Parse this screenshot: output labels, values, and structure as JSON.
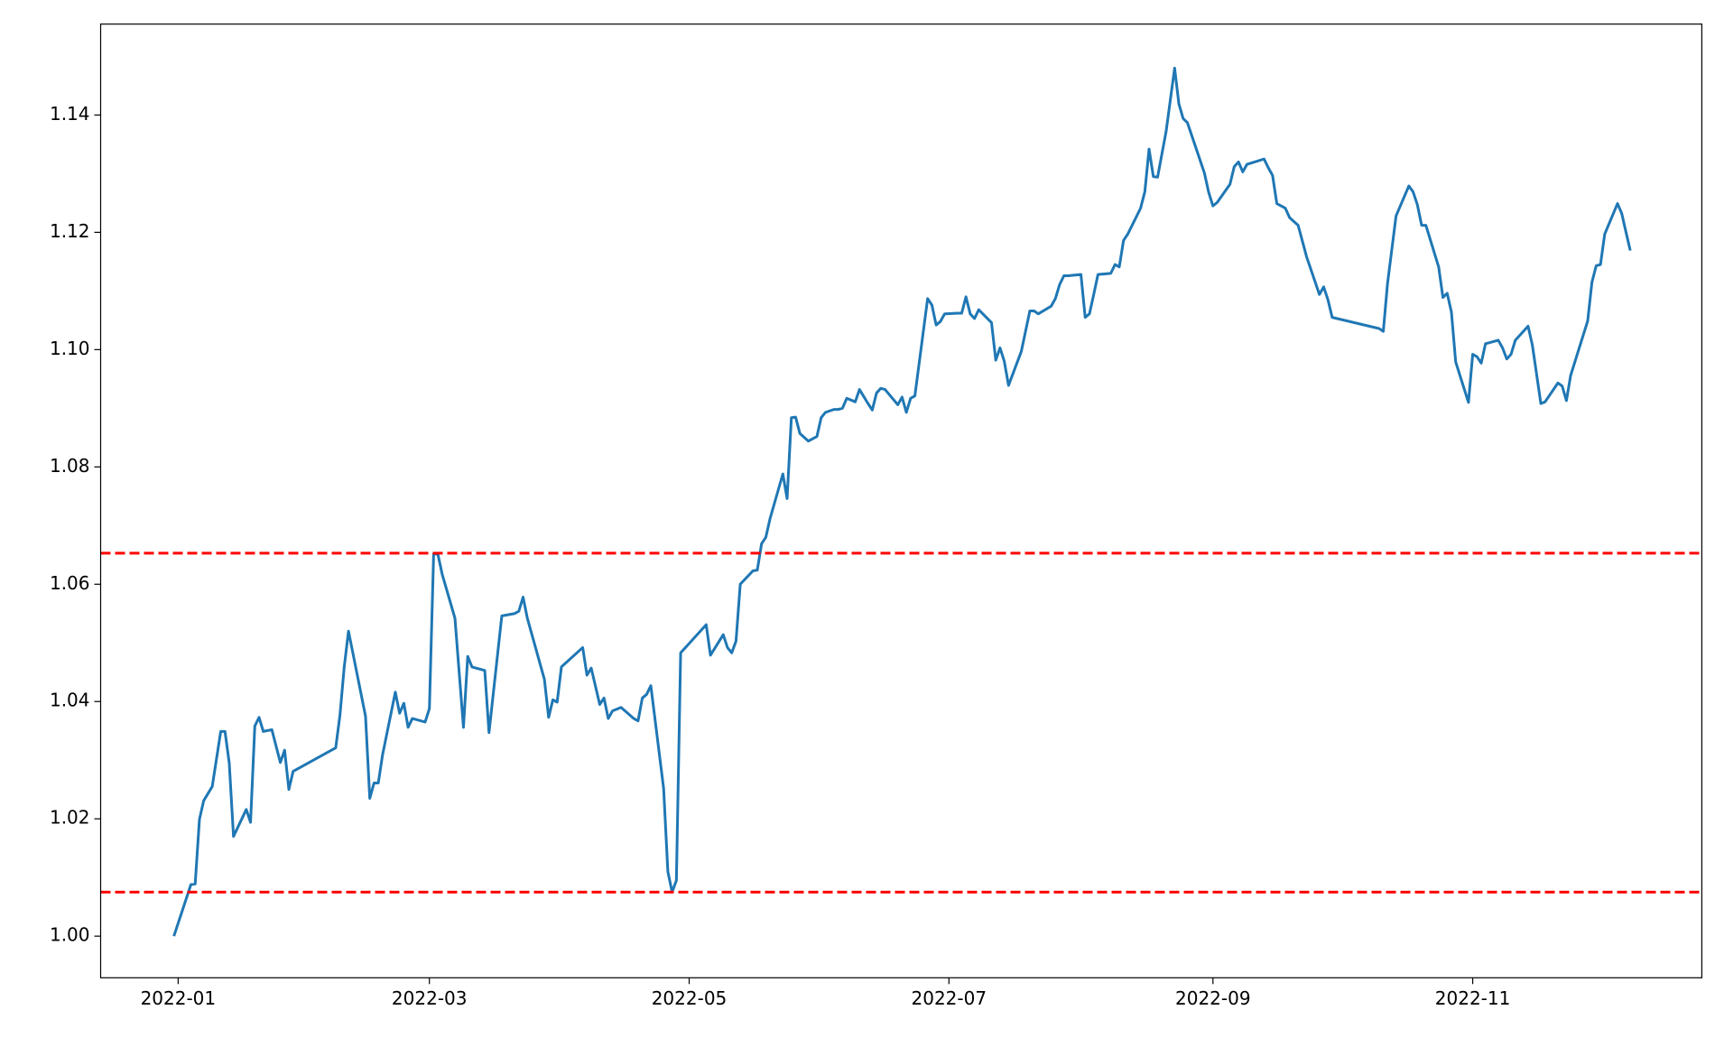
{
  "chart_data": {
    "type": "line",
    "x": [
      -1,
      3,
      4,
      5,
      6,
      8,
      10,
      11,
      12,
      13,
      16,
      17,
      18,
      19,
      20,
      22,
      24,
      25,
      26,
      27,
      37,
      38,
      39,
      40,
      44,
      45,
      46,
      47,
      48,
      51,
      52,
      53,
      54,
      55,
      58,
      59,
      60,
      61,
      62,
      65,
      67,
      68,
      69,
      72,
      73,
      76,
      79,
      80,
      81,
      82,
      86,
      87,
      88,
      89,
      90,
      95,
      96,
      97,
      99,
      100,
      101,
      102,
      104,
      107,
      108,
      109,
      110,
      111,
      114,
      115,
      116,
      117,
      118,
      124,
      125,
      128,
      129,
      130,
      131,
      132,
      135,
      136,
      137,
      138,
      139,
      142,
      143,
      144,
      145,
      146,
      148,
      150,
      151,
      152,
      154,
      155,
      156,
      157,
      159,
      160,
      162,
      163,
      164,
      165,
      166,
      169,
      170,
      171,
      172,
      173,
      176,
      177,
      178,
      179,
      180,
      183,
      184,
      185,
      186,
      187,
      188,
      191,
      192,
      193,
      194,
      195,
      198,
      200,
      201,
      202,
      205,
      206,
      207,
      208,
      209,
      212,
      213,
      214,
      215,
      216,
      219,
      220,
      221,
      222,
      223,
      226,
      227,
      228,
      229,
      230,
      232,
      234,
      235,
      236,
      237,
      241,
      242,
      243,
      244,
      247,
      248,
      249,
      250,
      251,
      255,
      256,
      257,
      258,
      260,
      261,
      263,
      265,
      268,
      269,
      270,
      271,
      282,
      283,
      284,
      286,
      289,
      290,
      291,
      292,
      293,
      296,
      297,
      298,
      299,
      300,
      303,
      304,
      305,
      306,
      307,
      310,
      311,
      312,
      313,
      314,
      317,
      318,
      320,
      321,
      324,
      325,
      326,
      327,
      331,
      332,
      333,
      334,
      335,
      338,
      339,
      340,
      341
    ],
    "values": [
      1.0,
      1.0088,
      1.0089,
      1.0199,
      1.0231,
      1.0255,
      1.0349,
      1.0349,
      1.0295,
      1.017,
      1.0216,
      1.0194,
      1.0358,
      1.0373,
      1.0349,
      1.0352,
      1.0296,
      1.0317,
      1.025,
      1.0281,
      1.0321,
      1.0377,
      1.0459,
      1.052,
      1.0375,
      1.0235,
      1.0261,
      1.0261,
      1.0309,
      1.0416,
      1.038,
      1.0397,
      1.0356,
      1.0371,
      1.0365,
      1.0388,
      1.0652,
      1.0651,
      1.0617,
      1.0542,
      1.0356,
      1.0477,
      1.0459,
      1.0453,
      1.0347,
      1.0546,
      1.055,
      1.0554,
      1.0578,
      1.0542,
      1.0438,
      1.0373,
      1.0403,
      1.0399,
      1.0459,
      1.0492,
      1.0445,
      1.0457,
      1.0395,
      1.0406,
      1.0371,
      1.0384,
      1.039,
      1.0371,
      1.0367,
      1.0406,
      1.0412,
      1.0427,
      1.0252,
      1.011,
      1.0075,
      1.0095,
      1.0483,
      1.0531,
      1.0479,
      1.0514,
      1.0492,
      1.0483,
      1.0503,
      1.06,
      1.0623,
      1.0624,
      1.0669,
      1.068,
      1.0712,
      1.0788,
      1.0746,
      1.0884,
      1.0885,
      1.0857,
      1.0844,
      1.0852,
      1.0884,
      1.0893,
      1.0898,
      1.0898,
      1.09,
      1.0917,
      1.0911,
      1.0932,
      1.0908,
      1.0897,
      1.0926,
      1.0934,
      1.0932,
      1.0906,
      1.0919,
      1.0893,
      1.0917,
      1.0921,
      1.1087,
      1.1076,
      1.1042,
      1.1048,
      1.1061,
      1.1062,
      1.1062,
      1.109,
      1.1061,
      1.1053,
      1.1068,
      1.1046,
      1.0982,
      1.1003,
      1.098,
      1.0939,
      1.0997,
      1.1066,
      1.1066,
      1.1061,
      1.1074,
      1.1087,
      1.1111,
      1.1126,
      1.1126,
      1.1128,
      1.1055,
      1.1061,
      1.1094,
      1.1128,
      1.113,
      1.1145,
      1.1141,
      1.1186,
      1.1197,
      1.1241,
      1.1269,
      1.1342,
      1.1295,
      1.1294,
      1.1372,
      1.148,
      1.1419,
      1.1394,
      1.1387,
      1.1301,
      1.1268,
      1.1245,
      1.1251,
      1.1282,
      1.1312,
      1.132,
      1.1303,
      1.1316,
      1.1325,
      1.131,
      1.1297,
      1.1249,
      1.1241,
      1.1225,
      1.1212,
      1.1158,
      1.1094,
      1.1107,
      1.1085,
      1.1055,
      1.1036,
      1.1031,
      1.1113,
      1.1228,
      1.1279,
      1.1269,
      1.1247,
      1.1212,
      1.1212,
      1.1141,
      1.1089,
      1.1096,
      1.1064,
      1.0979,
      1.091,
      1.0992,
      1.0988,
      1.0977,
      1.101,
      1.1016,
      1.1003,
      1.0984,
      1.0992,
      1.1016,
      1.104,
      1.1008,
      1.0908,
      1.0911,
      1.0943,
      1.0938,
      1.0913,
      1.0956,
      1.1049,
      1.1115,
      1.1143,
      1.1145,
      1.1197,
      1.1249,
      1.1232,
      1.12,
      1.1169
    ],
    "color": "#1f77b4",
    "xlim": [
      -18.2,
      357.8
    ],
    "xticks": [
      {
        "value": 0,
        "label": "2022-01"
      },
      {
        "value": 59,
        "label": "2022-03"
      },
      {
        "value": 120,
        "label": "2022-05"
      },
      {
        "value": 181,
        "label": "2022-07"
      },
      {
        "value": 243,
        "label": "2022-09"
      },
      {
        "value": 304,
        "label": "2022-11"
      }
    ],
    "ylim": [
      0.9929,
      1.1555
    ],
    "yticks": [
      {
        "value": 1,
        "label": "1.00"
      },
      1.02,
      1.04,
      1.06,
      1.08,
      {
        "value": 1.1,
        "label": "1.10"
      },
      1.12,
      1.14
    ],
    "reference_lines": [
      {
        "y": 1.0653,
        "color": "#ff0000",
        "linestyle": "dashed"
      },
      {
        "y": 1.0075,
        "color": "#ff0000",
        "linestyle": "dashed"
      }
    ],
    "grid": false
  }
}
